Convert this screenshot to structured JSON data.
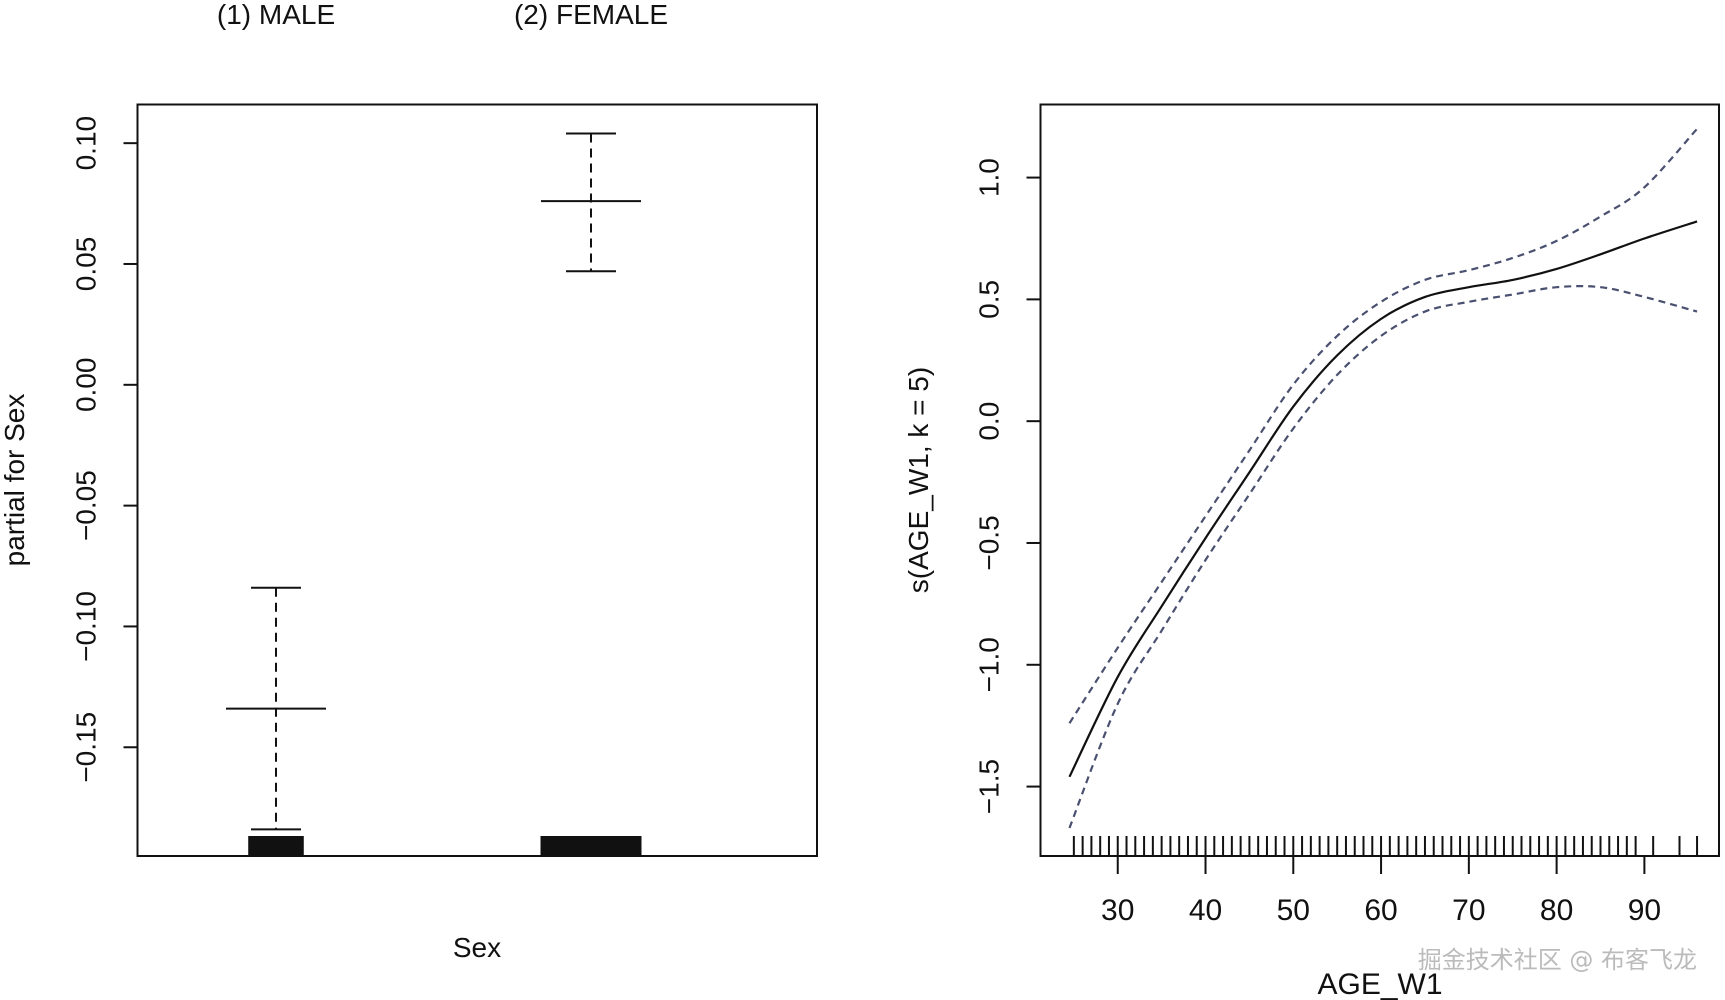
{
  "chart_data": [
    {
      "type": "errorbar",
      "title": "",
      "xlabel": "Sex",
      "ylabel": "partial for Sex",
      "categories": [
        "(1) MALE",
        "(2) FEMALE"
      ],
      "values": [
        -0.134,
        0.076
      ],
      "upper": [
        -0.084,
        0.104
      ],
      "lower": [
        -0.184,
        0.047
      ],
      "rug_width_relative": [
        0.55,
        1.0
      ],
      "ylim": [
        -0.195,
        0.116
      ],
      "yticks": [
        -0.15,
        -0.1,
        -0.05,
        0.0,
        0.05,
        0.1
      ],
      "ytick_labels": [
        "−0.15",
        "−0.10",
        "−0.05",
        "0.00",
        "0.05",
        "0.10"
      ],
      "grid": false
    },
    {
      "type": "line",
      "title": "",
      "xlabel": "AGE_W1",
      "ylabel": "s(AGE_W1, k = 5)",
      "xlim": [
        21.2,
        98.5
      ],
      "ylim": [
        -1.785,
        1.3
      ],
      "xticks": [
        30,
        40,
        50,
        60,
        70,
        80,
        90
      ],
      "xtick_labels": [
        "30",
        "40",
        "50",
        "60",
        "70",
        "80",
        "90"
      ],
      "yticks": [
        -1.5,
        -1.0,
        -0.5,
        0.0,
        0.5,
        1.0
      ],
      "ytick_labels": [
        "−1.5",
        "−1.0",
        "−0.5",
        "0.0",
        "0.5",
        "1.0"
      ],
      "x": [
        24.5,
        30,
        35,
        40,
        45,
        50,
        55,
        60,
        65,
        70,
        75,
        80,
        85,
        90,
        96
      ],
      "series": [
        {
          "name": "fit",
          "style": "solid",
          "color": "#111111",
          "values": [
            -1.46,
            -1.05,
            -0.76,
            -0.48,
            -0.21,
            0.06,
            0.27,
            0.42,
            0.51,
            0.55,
            0.58,
            0.625,
            0.685,
            0.75,
            0.82
          ]
        },
        {
          "name": "upper",
          "style": "dashed",
          "color": "#4a5070",
          "values": [
            -1.24,
            -0.93,
            -0.66,
            -0.39,
            -0.12,
            0.15,
            0.35,
            0.49,
            0.58,
            0.62,
            0.67,
            0.74,
            0.84,
            0.96,
            1.2
          ]
        },
        {
          "name": "lower",
          "style": "dashed",
          "color": "#4a5070",
          "values": [
            -1.67,
            -1.16,
            -0.86,
            -0.57,
            -0.3,
            -0.03,
            0.19,
            0.35,
            0.45,
            0.49,
            0.52,
            0.55,
            0.55,
            0.51,
            0.45
          ]
        }
      ],
      "rug": [
        25,
        26,
        27,
        28,
        29,
        30,
        31,
        32,
        33,
        34,
        35,
        36,
        37,
        38,
        39,
        40,
        41,
        42,
        43,
        44,
        45,
        46,
        47,
        48,
        49,
        50,
        51,
        52,
        53,
        54,
        55,
        56,
        57,
        58,
        59,
        60,
        61,
        62,
        63,
        64,
        65,
        66,
        67,
        68,
        69,
        70,
        71,
        72,
        73,
        74,
        75,
        76,
        77,
        78,
        79,
        80,
        81,
        82,
        83,
        84,
        85,
        86,
        87,
        88,
        89,
        91,
        94,
        96
      ],
      "grid": false
    }
  ],
  "watermark": "掘金技术社区 @ 布客飞龙"
}
